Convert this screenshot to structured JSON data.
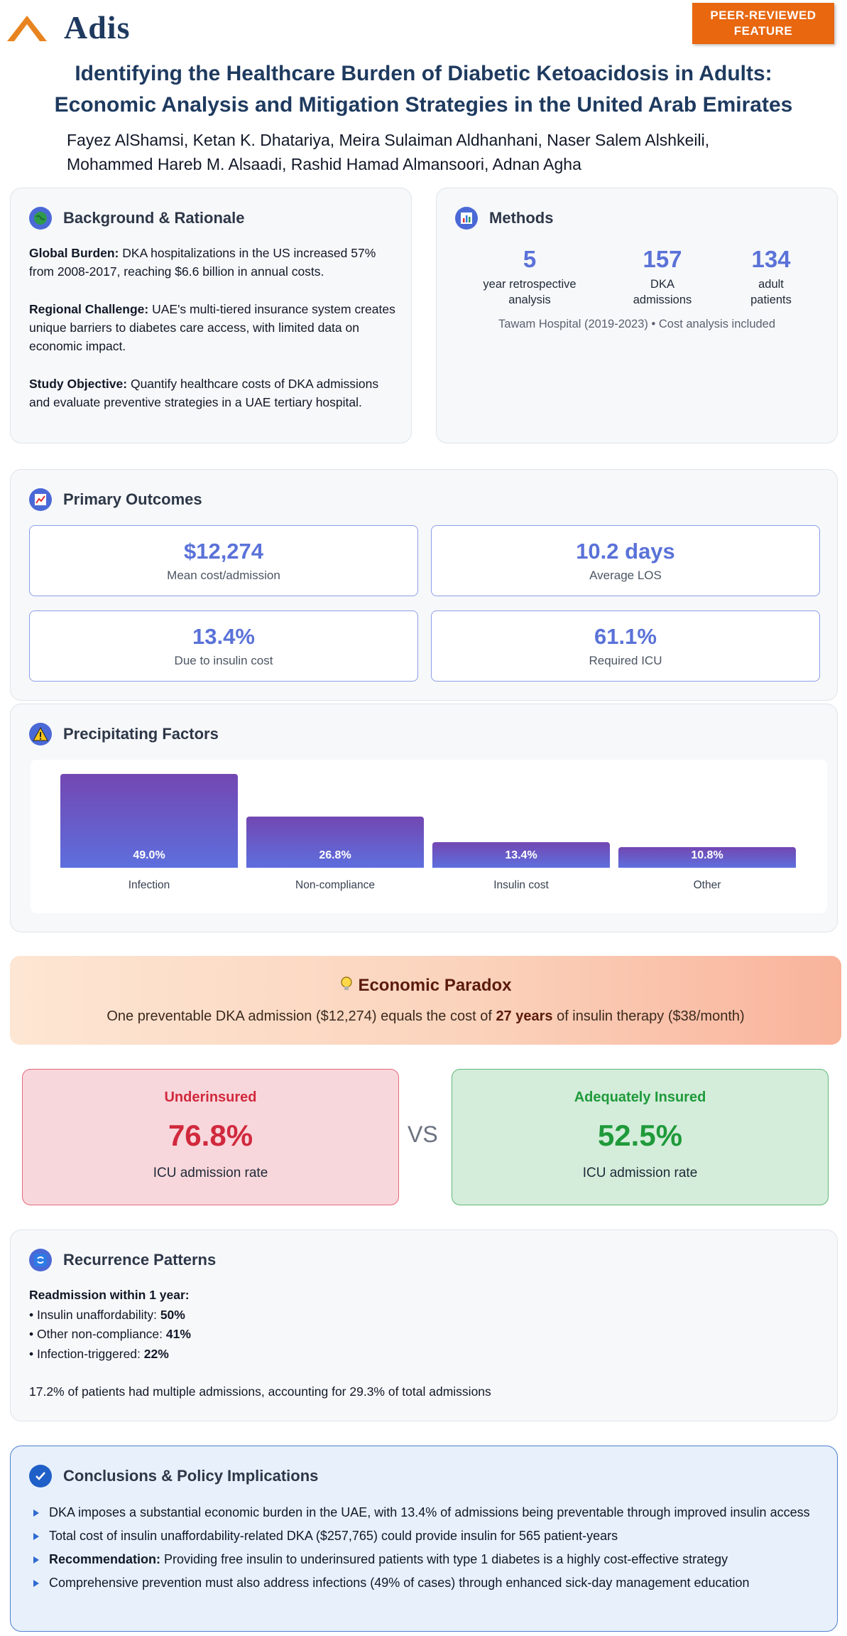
{
  "header": {
    "brand": "Adis",
    "badge_line1": "PEER-REVIEWED",
    "badge_line2": "FEATURE"
  },
  "title": {
    "line1": "Identifying the Healthcare Burden of Diabetic Ketoacidosis in Adults:",
    "line2": "Economic Analysis and Mitigation Strategies in the United Arab Emirates"
  },
  "authors": {
    "line1": "Fayez AlShamsi,  Ketan K. Dhatariya,  Meira Sulaiman Aldhanhani,  Naser Salem Alshkeili,",
    "line2": "Mohammed Hareb M. Alsaadi,  Rashid Hamad Almansoori,  Adnan Agha"
  },
  "background": {
    "title": "Background & Rationale",
    "p1_label": "Global Burden:",
    "p1_text": " DKA hospitalizations in the US increased 57% from 2008-2017, reaching $6.6 billion in annual costs.",
    "p2_label": "Regional Challenge:",
    "p2_text": " UAE's multi-tiered insurance system creates unique barriers to diabetes care access, with limited data on economic impact.",
    "p3_label": "Study Objective:",
    "p3_text": " Quantify healthcare costs of DKA admissions and evaluate preventive strategies in a UAE tertiary hospital."
  },
  "methods": {
    "title": "Methods",
    "stats": [
      {
        "value": "5",
        "line1": "year retrospective",
        "line2": "analysis"
      },
      {
        "value": "157",
        "line1": "DKA",
        "line2": "admissions"
      },
      {
        "value": "134",
        "line1": "adult",
        "line2": "patients"
      }
    ],
    "footer": "Tawam Hospital (2019-2023) • Cost analysis included"
  },
  "outcomes": {
    "title": "Primary Outcomes",
    "items": [
      {
        "value": "$12,274",
        "label": "Mean cost/admission"
      },
      {
        "value": "10.2 days",
        "label": "Average LOS"
      },
      {
        "value": "13.4%",
        "label": "Due to insulin cost"
      },
      {
        "value": "61.1%",
        "label": "Required ICU"
      }
    ]
  },
  "factors": {
    "title": "Precipitating Factors"
  },
  "chart_data": {
    "type": "bar",
    "title": "Precipitating Factors",
    "categories": [
      "Infection",
      "Non-compliance",
      "Insulin cost",
      "Other"
    ],
    "values": [
      49.0,
      26.8,
      13.4,
      10.8
    ],
    "value_labels": [
      "49.0%",
      "26.8%",
      "13.4%",
      "10.8%"
    ],
    "ylim": [
      0,
      49.0
    ],
    "grid": false,
    "colors": [
      "#7347b2",
      "#5d6fdd"
    ]
  },
  "paradox": {
    "title": "Economic Paradox",
    "text_before": "One preventable DKA admission ($12,274) equals the cost of ",
    "text_bold": "27 years",
    "text_after": " of insulin therapy ($38/month)"
  },
  "comparison": {
    "left": {
      "title": "Underinsured",
      "value": "76.8%",
      "label": "ICU admission rate",
      "accent": "#d1293d"
    },
    "vs": "VS",
    "right": {
      "title": "Adequately Insured",
      "value": "52.5%",
      "label": "ICU admission rate",
      "accent": "#1f9a3a"
    }
  },
  "recurrence": {
    "title": "Recurrence Patterns",
    "heading": "Readmission within 1 year:",
    "items": [
      {
        "label": "• Insulin unaffordability: ",
        "value": "50%"
      },
      {
        "label": "• Other non-compliance: ",
        "value": "41%"
      },
      {
        "label": "• Infection-triggered: ",
        "value": "22%"
      }
    ],
    "note": "17.2% of patients had multiple admissions, accounting for 29.3% of total admissions"
  },
  "conclusions": {
    "title": "Conclusions & Policy Implications",
    "item1": "DKA imposes a substantial economic burden in the UAE, with 13.4% of admissions being preventable through improved insulin access",
    "item2": "Total cost of insulin unaffordability-related DKA ($257,765) could provide insulin for 565 patient-years",
    "item3_label": "Recommendation:",
    "item3_text": " Providing free insulin to underinsured patients with type 1 diabetes is a highly cost-effective strategy",
    "item4": "Comprehensive prevention must also address infections (49% of cases) through enhanced sick-day management education"
  }
}
